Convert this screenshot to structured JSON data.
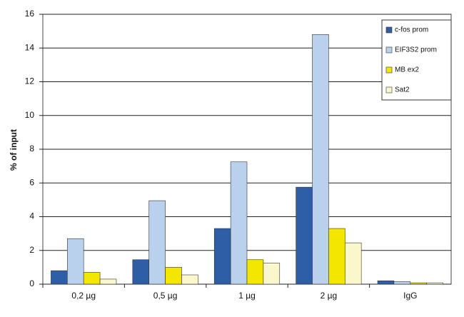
{
  "chart_data": {
    "type": "bar",
    "y_label": "% of input",
    "categories": [
      "0,2 µg",
      "0,5 µg",
      "1 µg",
      "2 µg",
      "IgG"
    ],
    "series": [
      {
        "name": "c-fos prom",
        "color": "#2d5ea6",
        "values": [
          0.8,
          1.45,
          3.3,
          5.75,
          0.2
        ]
      },
      {
        "name": "EIF3S2 prom",
        "color": "#b9d1ec",
        "values": [
          2.7,
          4.95,
          7.25,
          14.8,
          0.15
        ]
      },
      {
        "name": "MB ex2",
        "color": "#f3e600",
        "values": [
          0.7,
          1.0,
          1.45,
          3.3,
          0.08
        ]
      },
      {
        "name": "Sat2",
        "color": "#fbf7cc",
        "values": [
          0.3,
          0.55,
          1.25,
          2.45,
          0.08
        ]
      }
    ],
    "ylim": [
      0,
      16
    ],
    "yticks": [
      0,
      2,
      4,
      6,
      8,
      10,
      12,
      14,
      16
    ],
    "grid": true
  }
}
